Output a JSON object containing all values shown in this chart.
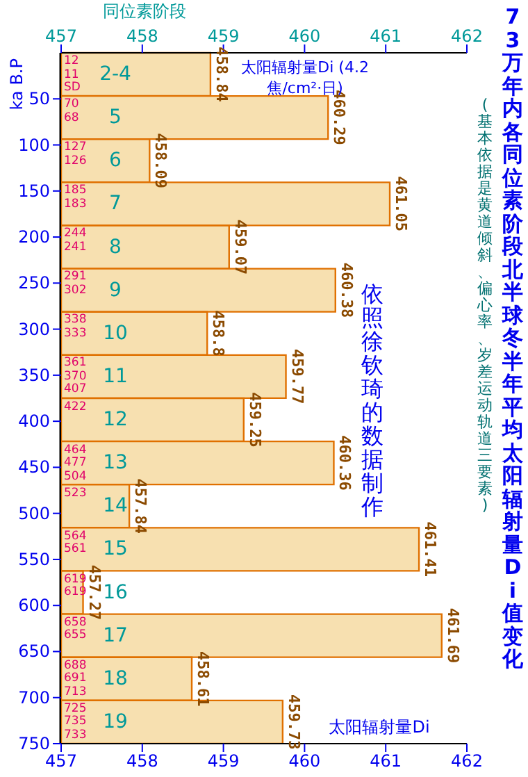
{
  "chart_data": {
    "type": "bar",
    "orientation": "horizontal",
    "title": "73万年内各同位素阶段北半球冬半年平均太阳辐射量Di值变化",
    "subtitle": "(基本依据是黄道倾斜、偏心率、岁差运动轨道三要素)",
    "xlabel": "太阳辐射量Di",
    "x2label": "太阳辐射量Di (4.2焦/cm²·日)",
    "y2label": "ka B.P",
    "categories": [
      "2-4",
      "5",
      "6",
      "7",
      "8",
      "9",
      "10",
      "11",
      "12",
      "13",
      "14",
      "15",
      "16",
      "17",
      "18",
      "19"
    ],
    "series": [
      {
        "color": "#f7e0b0",
        "values": [
          458.84,
          460.29,
          458.09,
          461.05,
          459.07,
          460.38,
          458.8,
          459.77,
          459.25,
          460.36,
          457.84,
          461.41,
          457.27,
          461.69,
          458.61,
          459.73
        ]
      }
    ],
    "data_labels": true,
    "xlim": [
      457,
      462
    ],
    "xticks": [
      457,
      458,
      459,
      460,
      461,
      462
    ],
    "x2lim": [
      457,
      462
    ],
    "x2ticks": [
      457,
      458,
      459,
      460,
      461,
      462
    ],
    "y2lim": [
      750,
      0
    ],
    "y2ticks": [
      50,
      100,
      150,
      200,
      250,
      300,
      350,
      400,
      450,
      500,
      550,
      600,
      650,
      700,
      750
    ],
    "annotations": [
      "同位素阶段",
      "依照徐钦琦的数据制作",
      {
        "text": "12",
        "y": "2-4"
      },
      {
        "text": "11",
        "y": "2-4"
      },
      {
        "text": "SD",
        "y": "2-4"
      },
      {
        "text": "70",
        "y": "5"
      },
      {
        "text": "68",
        "y": "5"
      },
      {
        "text": "127",
        "y": "6"
      },
      {
        "text": "126",
        "y": "6"
      },
      {
        "text": "185",
        "y": "7"
      },
      {
        "text": "183",
        "y": "7"
      },
      {
        "text": "244",
        "y": "8"
      },
      {
        "text": "241",
        "y": "8"
      },
      {
        "text": "291",
        "y": "9"
      },
      {
        "text": "302",
        "y": "9"
      },
      {
        "text": "338",
        "y": "10"
      },
      {
        "text": "333",
        "y": "10"
      },
      {
        "text": "361",
        "y": "11"
      },
      {
        "text": "370",
        "y": "11"
      },
      {
        "text": "407",
        "y": "11"
      },
      {
        "text": "422",
        "y": "12"
      },
      {
        "text": "464",
        "y": "13"
      },
      {
        "text": "477",
        "y": "13"
      },
      {
        "text": "504",
        "y": "13"
      },
      {
        "text": "523",
        "y": "14"
      },
      {
        "text": "564",
        "y": "15"
      },
      {
        "text": "561",
        "y": "15"
      },
      {
        "text": "619",
        "y": "16"
      },
      {
        "text": "619",
        "y": "16"
      },
      {
        "text": "658",
        "y": "17"
      },
      {
        "text": "655",
        "y": "17"
      },
      {
        "text": "688",
        "y": "18"
      },
      {
        "text": "691",
        "y": "18"
      },
      {
        "text": "713",
        "y": "18"
      },
      {
        "text": "725",
        "y": "19"
      },
      {
        "text": "735",
        "y": "19"
      },
      {
        "text": "733",
        "y": "19"
      }
    ]
  }
}
